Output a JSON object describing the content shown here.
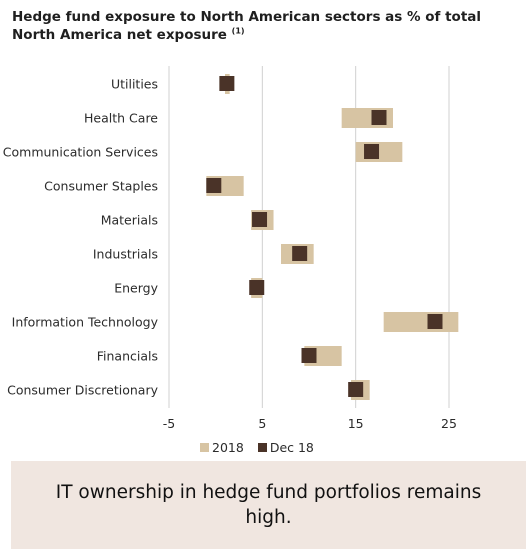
{
  "title": "Hedge fund exposure to North American sectors as % of total North America net exposure",
  "title_note": "(1)",
  "colors": {
    "range": "#d7c4a3",
    "point": "#4a3328",
    "grid": "#d0d0d0"
  },
  "chart_data": {
    "type": "range-dot",
    "categories": [
      "Utilities",
      "Health Care",
      "Communication Services",
      "Consumer Staples",
      "Materials",
      "Industrials",
      "Energy",
      "Information Technology",
      "Financials",
      "Consumer Discretionary"
    ],
    "series": [
      {
        "name": "2018",
        "kind": "range",
        "low": [
          1.0,
          13.5,
          15.0,
          -1.0,
          3.8,
          7.0,
          3.8,
          18.0,
          9.5,
          14.5
        ],
        "high": [
          1.5,
          19.0,
          20.0,
          3.0,
          6.2,
          10.5,
          5.0,
          26.0,
          13.5,
          16.5
        ]
      },
      {
        "name": "Dec 18",
        "kind": "point",
        "values": [
          1.2,
          17.5,
          16.7,
          -0.2,
          4.7,
          9.0,
          4.4,
          23.5,
          10.0,
          15.0
        ]
      }
    ],
    "xlim": [
      -5,
      25
    ],
    "xticks": [
      "-5",
      "5",
      "15",
      "25"
    ],
    "grid": true,
    "legend": "bottom"
  },
  "note": "IT ownership in hedge fund portfolios remains high."
}
